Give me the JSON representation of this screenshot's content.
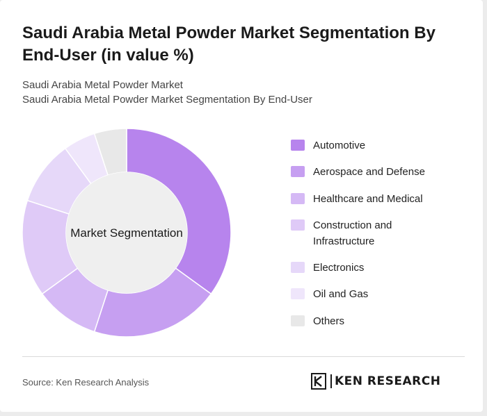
{
  "title": "Saudi Arabia Metal Powder Market Segmentation By End-User (in value %)",
  "subtitles": [
    "Saudi Arabia Metal Powder Market",
    "Saudi Arabia Metal Powder Market Segmentation By End-User"
  ],
  "center_label": "Market Segmentation",
  "source": "Source: Ken Research Analysis",
  "brand": {
    "name": "KEN RESEARCH",
    "mark": "K"
  },
  "chart_data": {
    "type": "pie",
    "title": "Saudi Arabia Metal Powder Market Segmentation By End-User (in value %)",
    "series": [
      {
        "values": [
          35,
          20,
          10,
          15,
          10,
          5,
          5
        ]
      }
    ],
    "categories": [
      "Automotive",
      "Aerospace and Defense",
      "Healthcare and Medical",
      "Construction and Infrastructure",
      "Electronics",
      "Oil and Gas",
      "Others"
    ],
    "colors": [
      "#b784ed",
      "#c69ff1",
      "#d5b9f5",
      "#dfcaf7",
      "#e6d8f9",
      "#efe6fb",
      "#e8e8e8"
    ],
    "legend_position": "right",
    "donut": true
  }
}
